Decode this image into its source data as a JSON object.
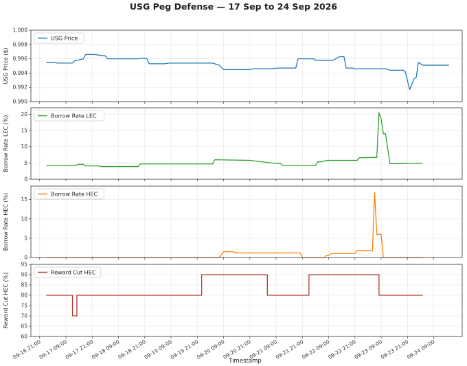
{
  "title": "USG Peg Defense — 17 Sep to 24 Sep 2026",
  "x_axis_label": "Timestamp",
  "x_ticks": [
    "09-16 21:00",
    "09-17 09:00",
    "09-17 21:00",
    "09-18 09:00",
    "09-18 21:00",
    "09-19 09:00",
    "09-19 21:00",
    "09-20 09:00",
    "09-20 21:00",
    "09-21 09:00",
    "09-21 21:00",
    "09-22 09:00",
    "09-22 21:00",
    "09-23 09:00",
    "09-23 21:00",
    "09-24 09:00"
  ],
  "chart_data": [
    {
      "type": "line",
      "ylabel": "USG Price ($)",
      "ylim": [
        0.99,
        1.0
      ],
      "yticks": [
        "0.990",
        "0.992",
        "0.994",
        "0.996",
        "0.998",
        "1.000"
      ],
      "grid": true,
      "legend_placement": "top-left",
      "series": [
        {
          "name": "USG Price",
          "color": "#1f77b4",
          "points": [
            [
              "09-17 00:00",
              0.9955
            ],
            [
              "09-17 04:00",
              0.9955
            ],
            [
              "09-17 05:00",
              0.9954
            ],
            [
              "09-17 12:00",
              0.9954
            ],
            [
              "09-17 13:00",
              0.9957
            ],
            [
              "09-17 17:00",
              0.996
            ],
            [
              "09-17 18:00",
              0.9966
            ],
            [
              "09-17 22:00",
              0.9966
            ],
            [
              "09-18 03:00",
              0.9964
            ],
            [
              "09-18 04:00",
              0.996
            ],
            [
              "09-18 18:00",
              0.996
            ],
            [
              "09-18 19:00",
              0.9961
            ],
            [
              "09-18 22:00",
              0.996
            ],
            [
              "09-18 23:00",
              0.9953
            ],
            [
              "09-19 06:00",
              0.9953
            ],
            [
              "09-19 08:00",
              0.9954
            ],
            [
              "09-19 20:00",
              0.9954
            ],
            [
              "09-20 04:00",
              0.9954
            ],
            [
              "09-20 07:00",
              0.9951
            ],
            [
              "09-20 09:00",
              0.9945
            ],
            [
              "09-20 21:00",
              0.9945
            ],
            [
              "09-20 23:00",
              0.9946
            ],
            [
              "09-21 07:00",
              0.9946
            ],
            [
              "09-21 10:00",
              0.9947
            ],
            [
              "09-21 18:00",
              0.9947
            ],
            [
              "09-21 19:00",
              0.996
            ],
            [
              "09-22 02:00",
              0.996
            ],
            [
              "09-22 03:00",
              0.9958
            ],
            [
              "09-22 11:00",
              0.9958
            ],
            [
              "09-22 14:00",
              0.9963
            ],
            [
              "09-22 16:00",
              0.9963
            ],
            [
              "09-22 17:00",
              0.9947
            ],
            [
              "09-22 20:00",
              0.9947
            ],
            [
              "09-22 21:00",
              0.9946
            ],
            [
              "09-23 11:00",
              0.9946
            ],
            [
              "09-23 13:00",
              0.9944
            ],
            [
              "09-23 19:00",
              0.9944
            ],
            [
              "09-23 20:00",
              0.9942
            ],
            [
              "09-23 22:00",
              0.9917
            ],
            [
              "09-24 00:00",
              0.9932
            ],
            [
              "09-24 01:00",
              0.9934
            ],
            [
              "09-24 02:00",
              0.9955
            ],
            [
              "09-24 04:00",
              0.9951
            ],
            [
              "09-24 16:00",
              0.9951
            ]
          ]
        }
      ]
    },
    {
      "type": "line",
      "ylabel": "Borrow Rate LEC (%)",
      "ylim": [
        0,
        22
      ],
      "yticks": [
        "0",
        "5",
        "10",
        "15",
        "20"
      ],
      "grid": true,
      "legend_placement": "top-left",
      "series": [
        {
          "name": "Borrow Rate LEC",
          "color": "#2ca02c",
          "points": [
            [
              "09-17 00:00",
              4.2
            ],
            [
              "09-17 13:00",
              4.2
            ],
            [
              "09-17 15:00",
              4.6
            ],
            [
              "09-17 17:00",
              4.6
            ],
            [
              "09-17 18:00",
              4.1
            ],
            [
              "09-18 00:00",
              4.1
            ],
            [
              "09-18 01:00",
              3.9
            ],
            [
              "09-18 18:00",
              3.9
            ],
            [
              "09-18 19:00",
              4.7
            ],
            [
              "09-20 03:00",
              4.7
            ],
            [
              "09-20 04:00",
              4.7
            ],
            [
              "09-20 05:00",
              6.0
            ],
            [
              "09-20 21:00",
              5.8
            ],
            [
              "09-21 07:00",
              5.0
            ],
            [
              "09-21 11:00",
              4.8
            ],
            [
              "09-21 12:00",
              4.2
            ],
            [
              "09-21 23:00",
              4.2
            ],
            [
              "09-22 03:00",
              4.2
            ],
            [
              "09-22 04:00",
              5.3
            ],
            [
              "09-22 06:00",
              5.4
            ],
            [
              "09-22 08:00",
              5.8
            ],
            [
              "09-22 22:00",
              5.8
            ],
            [
              "09-22 23:00",
              6.6
            ],
            [
              "09-23 05:00",
              6.7
            ],
            [
              "09-23 07:00",
              6.7
            ],
            [
              "09-23 08:00",
              20.5
            ],
            [
              "09-23 09:00",
              18.5
            ],
            [
              "09-23 10:00",
              14.0
            ],
            [
              "09-23 11:00",
              14.0
            ],
            [
              "09-23 13:00",
              4.8
            ],
            [
              "09-23 20:00",
              4.8
            ],
            [
              "09-23 21:00",
              4.9
            ],
            [
              "09-24 04:00",
              4.9
            ]
          ]
        }
      ]
    },
    {
      "type": "line",
      "ylabel": "Borrow Rate HEC (%)",
      "ylim": [
        0,
        18.5
      ],
      "yticks": [
        "0",
        "5",
        "10",
        "15"
      ],
      "grid": true,
      "legend_placement": "top-left",
      "series": [
        {
          "name": "Borrow Rate HEC",
          "color": "#ff7f0e",
          "points": [
            [
              "09-17 00:00",
              0
            ],
            [
              "09-20 07:00",
              0
            ],
            [
              "09-20 09:00",
              1.5
            ],
            [
              "09-20 13:00",
              1.5
            ],
            [
              "09-20 15:00",
              1.2
            ],
            [
              "09-21 20:00",
              1.2
            ],
            [
              "09-21 21:00",
              0
            ],
            [
              "09-22 07:00",
              0
            ],
            [
              "09-22 08:00",
              0.5
            ],
            [
              "09-22 09:00",
              0.5
            ],
            [
              "09-22 10:00",
              1.0
            ],
            [
              "09-22 21:00",
              1.0
            ],
            [
              "09-22 22:00",
              1.8
            ],
            [
              "09-23 05:00",
              1.8
            ],
            [
              "09-23 06:00",
              16.8
            ],
            [
              "09-23 07:00",
              6.0
            ],
            [
              "09-23 09:00",
              6.0
            ],
            [
              "09-23 10:00",
              0
            ],
            [
              "09-24 04:00",
              0
            ]
          ]
        }
      ]
    },
    {
      "type": "line",
      "ylabel": "Reward Cut HEC (%)",
      "ylim": [
        60,
        95
      ],
      "yticks": [
        "60",
        "65",
        "70",
        "75",
        "80",
        "85",
        "90",
        "95"
      ],
      "grid": true,
      "legend_placement": "top-left",
      "series": [
        {
          "name": "Reward Cut HEC",
          "color": "#b03a2e",
          "points": [
            [
              "09-17 00:00",
              80
            ],
            [
              "09-17 12:00",
              80
            ],
            [
              "09-17 12:00",
              70
            ],
            [
              "09-17 14:00",
              70
            ],
            [
              "09-17 14:00",
              80
            ],
            [
              "09-19 23:00",
              80
            ],
            [
              "09-19 23:00",
              90
            ],
            [
              "09-21 05:00",
              90
            ],
            [
              "09-21 05:00",
              80
            ],
            [
              "09-22 00:00",
              80
            ],
            [
              "09-22 00:00",
              90
            ],
            [
              "09-23 08:00",
              90
            ],
            [
              "09-23 08:00",
              80
            ],
            [
              "09-24 04:00",
              80
            ]
          ]
        }
      ]
    }
  ]
}
